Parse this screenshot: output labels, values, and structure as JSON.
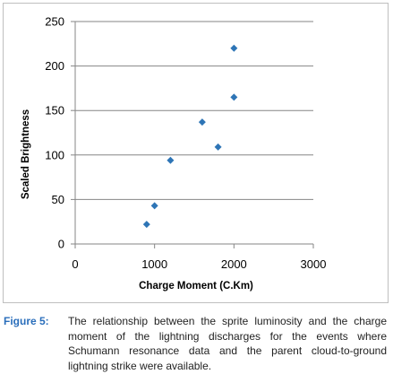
{
  "chart_data": {
    "type": "scatter",
    "xlabel": "Charge Moment (C.Km)",
    "ylabel": "Scaled Brightness",
    "xlim": [
      0,
      3000
    ],
    "ylim": [
      0,
      250
    ],
    "x_ticks": [
      0,
      1000,
      2000,
      3000
    ],
    "y_ticks": [
      0,
      50,
      100,
      150,
      200,
      250
    ],
    "grid": "horizontal",
    "marker": "diamond",
    "marker_color": "#2e75b6",
    "points": [
      {
        "x": 900,
        "y": 22
      },
      {
        "x": 1000,
        "y": 43
      },
      {
        "x": 1200,
        "y": 94
      },
      {
        "x": 1600,
        "y": 137
      },
      {
        "x": 1800,
        "y": 109
      },
      {
        "x": 2000,
        "y": 165
      },
      {
        "x": 2000,
        "y": 220
      }
    ]
  },
  "caption": {
    "label": "Figure 5:",
    "text": "The relationship between the sprite luminosity and the charge moment of the lightning discharges for the events where Schumann resonance data and the parent cloud-to-ground lightning strike were available."
  },
  "colors": {
    "caption_label": "#2a6ebb",
    "gridline": "#868686"
  }
}
